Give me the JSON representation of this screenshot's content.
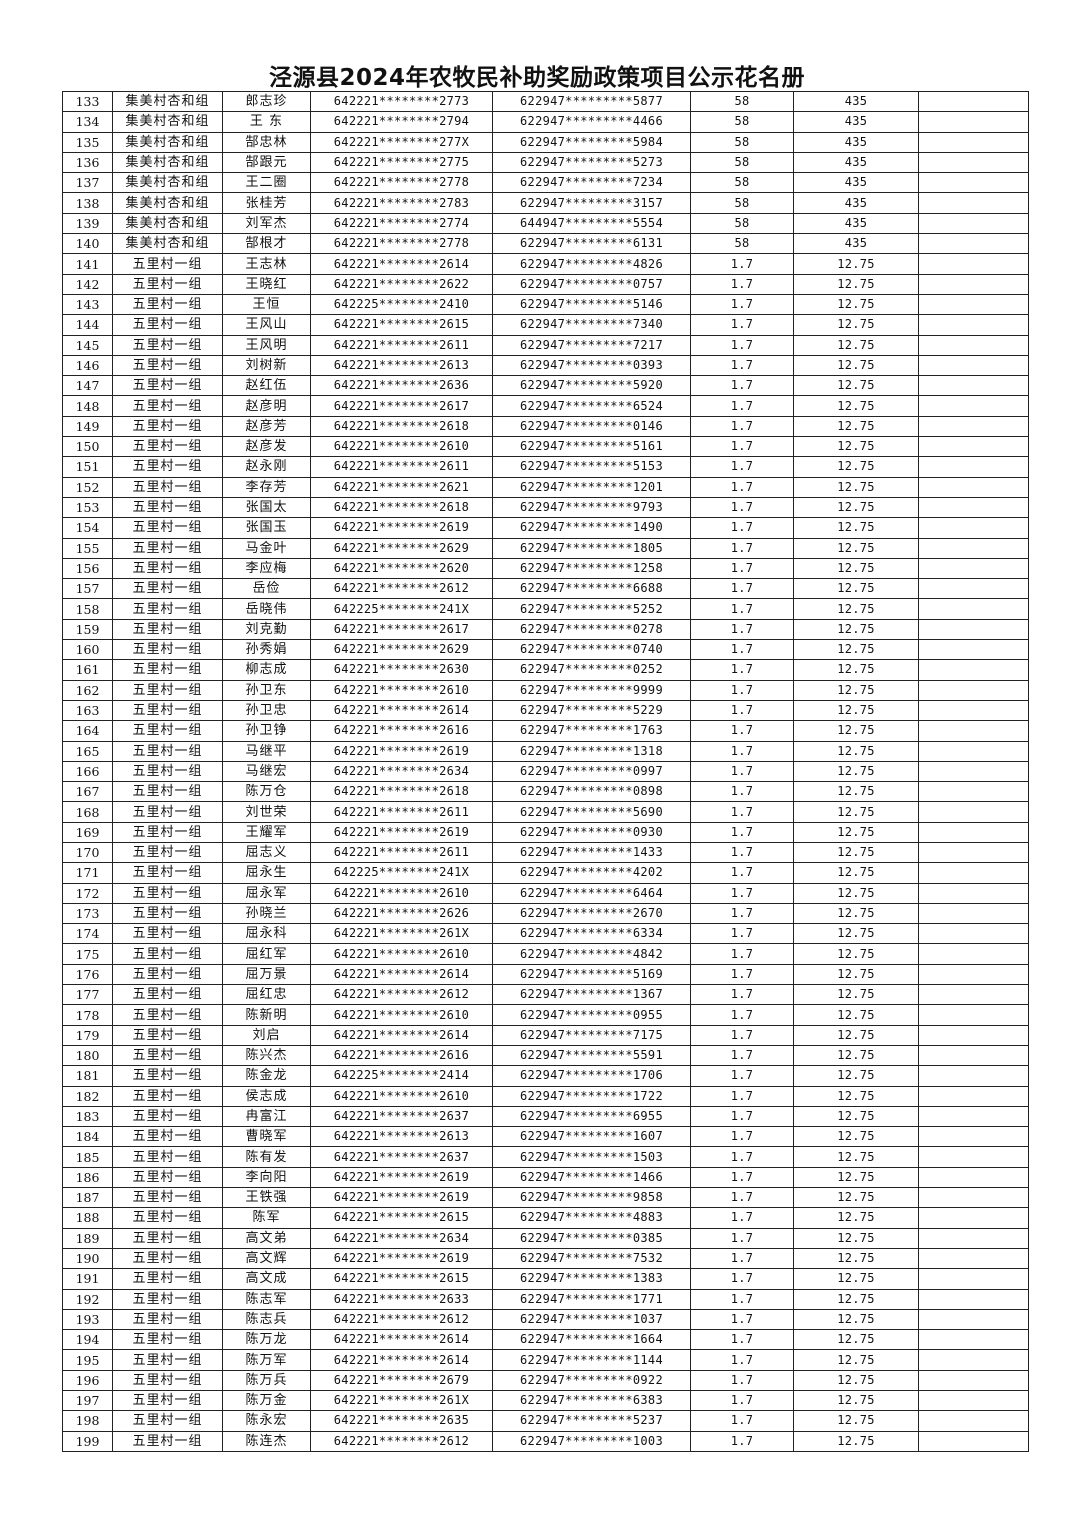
{
  "title": "泾源县2024年农牧民补助奖励政策项目公示花名册",
  "rows": [
    [
      "133",
      "集美村杏和组",
      "郎志珍",
      "642221********2773",
      "622947*********5877",
      "58",
      "435",
      ""
    ],
    [
      "134",
      "集美村杏和组",
      "王 东",
      "642221********2794",
      "622947*********4466",
      "58",
      "435",
      ""
    ],
    [
      "135",
      "集美村杏和组",
      "郜忠林",
      "642221********277X",
      "622947*********5984",
      "58",
      "435",
      ""
    ],
    [
      "136",
      "集美村杏和组",
      "郜跟元",
      "642221********2775",
      "622947*********5273",
      "58",
      "435",
      ""
    ],
    [
      "137",
      "集美村杏和组",
      "王二圈",
      "642221********2778",
      "622947*********7234",
      "58",
      "435",
      ""
    ],
    [
      "138",
      "集美村杏和组",
      "张桂芳",
      "642221********2783",
      "622947*********3157",
      "58",
      "435",
      ""
    ],
    [
      "139",
      "集美村杏和组",
      "刘军杰",
      "642221********2774",
      "644947*********5554",
      "58",
      "435",
      ""
    ],
    [
      "140",
      "集美村杏和组",
      "郜根才",
      "642221********2778",
      "622947*********6131",
      "58",
      "435",
      ""
    ],
    [
      "141",
      "五里村一组",
      "王志林",
      "642221********2614",
      "622947*********4826",
      "1.7",
      "12.75",
      ""
    ],
    [
      "142",
      "五里村一组",
      "王晓红",
      "642221********2622",
      "622947*********0757",
      "1.7",
      "12.75",
      ""
    ],
    [
      "143",
      "五里村一组",
      "王恒",
      "642225********2410",
      "622947*********5146",
      "1.7",
      "12.75",
      ""
    ],
    [
      "144",
      "五里村一组",
      "王风山",
      "642221********2615",
      "622947*********7340",
      "1.7",
      "12.75",
      ""
    ],
    [
      "145",
      "五里村一组",
      "王风明",
      "642221********2611",
      "622947*********7217",
      "1.7",
      "12.75",
      ""
    ],
    [
      "146",
      "五里村一组",
      "刘树新",
      "642221********2613",
      "622947*********0393",
      "1.7",
      "12.75",
      ""
    ],
    [
      "147",
      "五里村一组",
      "赵红伍",
      "642221********2636",
      "622947*********5920",
      "1.7",
      "12.75",
      ""
    ],
    [
      "148",
      "五里村一组",
      "赵彦明",
      "642221********2617",
      "622947*********6524",
      "1.7",
      "12.75",
      ""
    ],
    [
      "149",
      "五里村一组",
      "赵彦芳",
      "642221********2618",
      "622947*********0146",
      "1.7",
      "12.75",
      ""
    ],
    [
      "150",
      "五里村一组",
      "赵彦发",
      "642221********2610",
      "622947*********5161",
      "1.7",
      "12.75",
      ""
    ],
    [
      "151",
      "五里村一组",
      "赵永刚",
      "642221********2611",
      "622947*********5153",
      "1.7",
      "12.75",
      ""
    ],
    [
      "152",
      "五里村一组",
      "李存芳",
      "642221********2621",
      "622947*********1201",
      "1.7",
      "12.75",
      ""
    ],
    [
      "153",
      "五里村一组",
      "张国太",
      "642221********2618",
      "622947*********9793",
      "1.7",
      "12.75",
      ""
    ],
    [
      "154",
      "五里村一组",
      "张国玉",
      "642221********2619",
      "622947*********1490",
      "1.7",
      "12.75",
      ""
    ],
    [
      "155",
      "五里村一组",
      "马金叶",
      "642221********2629",
      "622947*********1805",
      "1.7",
      "12.75",
      ""
    ],
    [
      "156",
      "五里村一组",
      "李应梅",
      "642221********2620",
      "622947*********1258",
      "1.7",
      "12.75",
      ""
    ],
    [
      "157",
      "五里村一组",
      "岳俭",
      "642221********2612",
      "622947*********6688",
      "1.7",
      "12.75",
      ""
    ],
    [
      "158",
      "五里村一组",
      "岳晓伟",
      "642225********241X",
      "622947*********5252",
      "1.7",
      "12.75",
      ""
    ],
    [
      "159",
      "五里村一组",
      "刘克勤",
      "642221********2617",
      "622947*********0278",
      "1.7",
      "12.75",
      ""
    ],
    [
      "160",
      "五里村一组",
      "孙秀娟",
      "642221********2629",
      "622947*********0740",
      "1.7",
      "12.75",
      ""
    ],
    [
      "161",
      "五里村一组",
      "柳志成",
      "642221********2630",
      "622947*********0252",
      "1.7",
      "12.75",
      ""
    ],
    [
      "162",
      "五里村一组",
      "孙卫东",
      "642221********2610",
      "622947*********9999",
      "1.7",
      "12.75",
      ""
    ],
    [
      "163",
      "五里村一组",
      "孙卫忠",
      "642221********2614",
      "622947*********5229",
      "1.7",
      "12.75",
      ""
    ],
    [
      "164",
      "五里村一组",
      "孙卫铮",
      "642221********2616",
      "622947*********1763",
      "1.7",
      "12.75",
      ""
    ],
    [
      "165",
      "五里村一组",
      "马继平",
      "642221********2619",
      "622947*********1318",
      "1.7",
      "12.75",
      ""
    ],
    [
      "166",
      "五里村一组",
      "马继宏",
      "642221********2634",
      "622947*********0997",
      "1.7",
      "12.75",
      ""
    ],
    [
      "167",
      "五里村一组",
      "陈万仓",
      "642221********2618",
      "622947*********0898",
      "1.7",
      "12.75",
      ""
    ],
    [
      "168",
      "五里村一组",
      "刘世荣",
      "642221********2611",
      "622947*********5690",
      "1.7",
      "12.75",
      ""
    ],
    [
      "169",
      "五里村一组",
      "王耀军",
      "642221********2619",
      "622947*********0930",
      "1.7",
      "12.75",
      ""
    ],
    [
      "170",
      "五里村一组",
      "屈志义",
      "642221********2611",
      "622947*********1433",
      "1.7",
      "12.75",
      ""
    ],
    [
      "171",
      "五里村一组",
      "屈永生",
      "642225********241X",
      "622947*********4202",
      "1.7",
      "12.75",
      ""
    ],
    [
      "172",
      "五里村一组",
      "屈永军",
      "642221********2610",
      "622947*********6464",
      "1.7",
      "12.75",
      ""
    ],
    [
      "173",
      "五里村一组",
      "孙晓兰",
      "642221********2626",
      "622947*********2670",
      "1.7",
      "12.75",
      ""
    ],
    [
      "174",
      "五里村一组",
      "屈永科",
      "642221********261X",
      "622947*********6334",
      "1.7",
      "12.75",
      ""
    ],
    [
      "175",
      "五里村一组",
      "屈红军",
      "642221********2610",
      "622947*********4842",
      "1.7",
      "12.75",
      ""
    ],
    [
      "176",
      "五里村一组",
      "屈万景",
      "642221********2614",
      "622947*********5169",
      "1.7",
      "12.75",
      ""
    ],
    [
      "177",
      "五里村一组",
      "屈红忠",
      "642221********2612",
      "622947*********1367",
      "1.7",
      "12.75",
      ""
    ],
    [
      "178",
      "五里村一组",
      "陈新明",
      "642221********2610",
      "622947*********0955",
      "1.7",
      "12.75",
      ""
    ],
    [
      "179",
      "五里村一组",
      "刘启",
      "642221********2614",
      "622947*********7175",
      "1.7",
      "12.75",
      ""
    ],
    [
      "180",
      "五里村一组",
      "陈兴杰",
      "642221********2616",
      "622947*********5591",
      "1.7",
      "12.75",
      ""
    ],
    [
      "181",
      "五里村一组",
      "陈金龙",
      "642225********2414",
      "622947*********1706",
      "1.7",
      "12.75",
      ""
    ],
    [
      "182",
      "五里村一组",
      "侯志成",
      "642221********2610",
      "622947*********1722",
      "1.7",
      "12.75",
      ""
    ],
    [
      "183",
      "五里村一组",
      "冉富江",
      "642221********2637",
      "622947*********6955",
      "1.7",
      "12.75",
      ""
    ],
    [
      "184",
      "五里村一组",
      "曹晓军",
      "642221********2613",
      "622947*********1607",
      "1.7",
      "12.75",
      ""
    ],
    [
      "185",
      "五里村一组",
      "陈有发",
      "642221********2637",
      "622947*********1503",
      "1.7",
      "12.75",
      ""
    ],
    [
      "186",
      "五里村一组",
      "李向阳",
      "642221********2619",
      "622947*********1466",
      "1.7",
      "12.75",
      ""
    ],
    [
      "187",
      "五里村一组",
      "王铁强",
      "642221********2619",
      "622947*********9858",
      "1.7",
      "12.75",
      ""
    ],
    [
      "188",
      "五里村一组",
      "陈军",
      "642221********2615",
      "622947*********4883",
      "1.7",
      "12.75",
      ""
    ],
    [
      "189",
      "五里村一组",
      "高文弟",
      "642221********2634",
      "622947*********0385",
      "1.7",
      "12.75",
      ""
    ],
    [
      "190",
      "五里村一组",
      "高文辉",
      "642221********2619",
      "622947*********7532",
      "1.7",
      "12.75",
      ""
    ],
    [
      "191",
      "五里村一组",
      "高文成",
      "642221********2615",
      "622947*********1383",
      "1.7",
      "12.75",
      ""
    ],
    [
      "192",
      "五里村一组",
      "陈志军",
      "642221********2633",
      "622947*********1771",
      "1.7",
      "12.75",
      ""
    ],
    [
      "193",
      "五里村一组",
      "陈志兵",
      "642221********2612",
      "622947*********1037",
      "1.7",
      "12.75",
      ""
    ],
    [
      "194",
      "五里村一组",
      "陈万龙",
      "642221********2614",
      "622947*********1664",
      "1.7",
      "12.75",
      ""
    ],
    [
      "195",
      "五里村一组",
      "陈万军",
      "642221********2614",
      "622947*********1144",
      "1.7",
      "12.75",
      ""
    ],
    [
      "196",
      "五里村一组",
      "陈万兵",
      "642221********2679",
      "622947*********0922",
      "1.7",
      "12.75",
      ""
    ],
    [
      "197",
      "五里村一组",
      "陈万金",
      "642221********261X",
      "622947*********6383",
      "1.7",
      "12.75",
      ""
    ],
    [
      "198",
      "五里村一组",
      "陈永宏",
      "642221********2635",
      "622947*********5237",
      "1.7",
      "12.75",
      ""
    ],
    [
      "199",
      "五里村一组",
      "陈连杰",
      "642221********2612",
      "622947*********1003",
      "1.7",
      "12.75",
      ""
    ]
  ]
}
